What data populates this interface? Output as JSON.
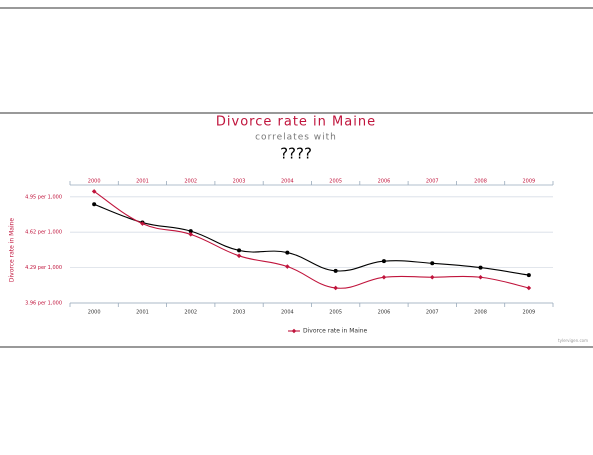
{
  "chart_data": {
    "type": "line",
    "title": "Divorce rate in Maine",
    "subtitle": "correlates with",
    "subtitle2": "????",
    "y_label": "Divorce rate in Maine",
    "credit": "tylervigen.com",
    "categories": [
      "2000",
      "2001",
      "2002",
      "2003",
      "2004",
      "2005",
      "2006",
      "2007",
      "2008",
      "2009"
    ],
    "series": [
      {
        "name": "Divorce rate in Maine",
        "color": "#c0143c",
        "values": [
          5.0,
          4.7,
          4.6,
          4.4,
          4.3,
          4.1,
          4.2,
          4.2,
          4.2,
          4.1
        ]
      },
      {
        "color": "#000000",
        "values": [
          4.88,
          4.71,
          4.63,
          4.45,
          4.43,
          4.26,
          4.35,
          4.33,
          4.29,
          4.22
        ]
      }
    ],
    "ylim": [
      3.96,
      5.06
    ],
    "yticks": [
      {
        "value": 3.96,
        "label": "3.96 per 1,000"
      },
      {
        "value": 4.29,
        "label": "4.29 per 1,000"
      },
      {
        "value": 4.62,
        "label": "4.62 per 1,000"
      },
      {
        "value": 4.95,
        "label": "4.95 per 1,000"
      }
    ],
    "grid": true,
    "legend": "bottom"
  }
}
